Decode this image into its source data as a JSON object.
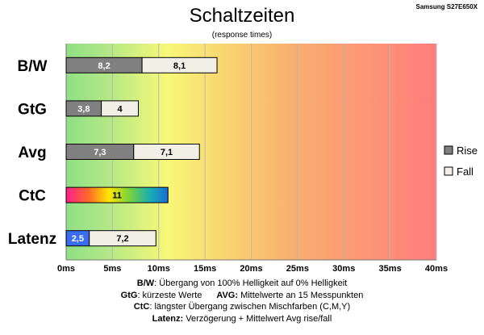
{
  "header": {
    "title": "Schaltzeiten",
    "subtitle": "(response times)",
    "model": "Samsung S27E650X"
  },
  "chart_data": {
    "type": "bar",
    "orientation": "horizontal",
    "stacked": true,
    "categories": [
      "B/W",
      "GtG",
      "Avg",
      "CtC",
      "Latenz"
    ],
    "series": [
      {
        "name": "Rise",
        "values": [
          8.2,
          3.8,
          7.3,
          null,
          null
        ],
        "labels": [
          "8,2",
          "3,8",
          "7,3",
          "",
          ""
        ]
      },
      {
        "name": "Fall",
        "values": [
          8.1,
          4,
          7.1,
          null,
          null
        ],
        "labels": [
          "8,1",
          "4",
          "7,1",
          "",
          ""
        ]
      },
      {
        "name": "",
        "values": [
          null,
          null,
          null,
          11,
          null
        ],
        "labels": [
          "",
          "",
          "",
          "11",
          ""
        ]
      },
      {
        "name": "",
        "values": [
          null,
          null,
          null,
          null,
          2.5
        ],
        "labels": [
          "",
          "",
          "",
          "",
          "2,5"
        ]
      },
      {
        "name": "",
        "values": [
          null,
          null,
          null,
          null,
          7.2
        ],
        "labels": [
          "",
          "",
          "",
          "",
          "7,2"
        ]
      }
    ],
    "xlim": [
      0,
      40
    ],
    "xticks": [
      0,
      5,
      10,
      15,
      20,
      25,
      30,
      35,
      40
    ],
    "xtick_labels": [
      "0ms",
      "5ms",
      "10ms",
      "15ms",
      "20ms",
      "25ms",
      "30ms",
      "35ms",
      "40ms"
    ],
    "grid": "vertical",
    "legend": {
      "position": "right",
      "entries": [
        "Rise",
        "Fall"
      ]
    },
    "background": "gradient green-yellow-red",
    "colors": {
      "rise": "#808080",
      "fall": "#f2f0e6",
      "latency": "#3a6cf0"
    }
  },
  "notes": {
    "bw_key": "B/W",
    "bw_text": ":  Übergang von 100% Helligkeit auf 0% Helligkeit",
    "gtg_key": "GtG",
    "gtg_text": ": kürzeste  Werte",
    "avg_key": "AVG:",
    "avg_text": "Mittelwerte  an 15 Messpunkten",
    "ctc_key": "CtC",
    "ctc_text": ": längster Übergang  zwischen Mischfarben (C,M,Y)",
    "lat_key": "Latenz:",
    "lat_text": "Verzögerung  + Mittelwert Avg rise/fall"
  }
}
